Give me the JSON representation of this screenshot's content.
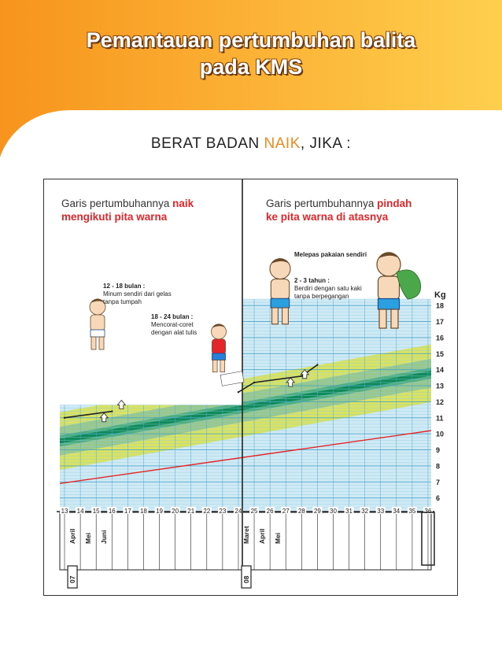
{
  "header": {
    "title_line1": "Pemantauan pertumbuhan balita",
    "title_line2": "pada KMS",
    "subtitle_pre": "BERAT BADAN ",
    "subtitle_hl": "NAIK",
    "subtitle_post": ", JIKA :",
    "accent_color": "#f7941d"
  },
  "left_panel": {
    "caption_line1_pre": "Garis pertumbuhannya ",
    "caption_line1_red": "naik",
    "caption_line2_red": "mengikuti pita warna",
    "milestone1_title": "12 - 18 bulan :",
    "milestone1_line1": "Minum sendiri dari gelas",
    "milestone1_line2": "tanpa tumpah",
    "milestone2_title": "18 - 24 bulan :",
    "milestone2_line1": "Mencorat-coret",
    "milestone2_line2": "dengan alat tulis",
    "year_label": "07",
    "months": [
      "April",
      "Mei",
      "Juni"
    ]
  },
  "right_panel": {
    "caption_line1_pre": "Garis pertumbuhannya ",
    "caption_line1_red": "pindah",
    "caption_line2_red": "ke pita warna di atasnya",
    "milestone3_title": "Melepas pakaian sendiri",
    "milestone4_title": "2 - 3 tahun :",
    "milestone4_line1": "Berdiri dengan satu kaki",
    "milestone4_line2": "tanpa berpegangan",
    "year_label": "08",
    "months": [
      "Maret",
      "April",
      "Mei"
    ]
  },
  "chart_data": {
    "type": "line",
    "y_unit_label": "Kg",
    "y_ticks": [
      6,
      7,
      8,
      9,
      10,
      11,
      12,
      13,
      14,
      15,
      16,
      17,
      18
    ],
    "x_ticks": [
      13,
      14,
      15,
      16,
      17,
      18,
      19,
      20,
      21,
      22,
      23,
      24,
      25,
      26,
      27,
      28,
      29,
      30,
      31,
      32,
      33,
      34,
      35,
      36
    ],
    "ylim": [
      5.2,
      18.5
    ],
    "xlim": [
      12.7,
      36.2
    ],
    "grid": true,
    "band_colors": [
      "#d9e24a",
      "#8fc27a",
      "#3aa56b",
      "#0f8a5a"
    ],
    "bgm_color": "#e3262a",
    "series": [
      {
        "x": [
          13,
          16
        ],
        "y": [
          11.0,
          11.4
        ]
      },
      {
        "x": [
          24,
          25,
          28,
          29
        ],
        "y": [
          12.6,
          13.2,
          13.6,
          14.3
        ]
      }
    ]
  }
}
